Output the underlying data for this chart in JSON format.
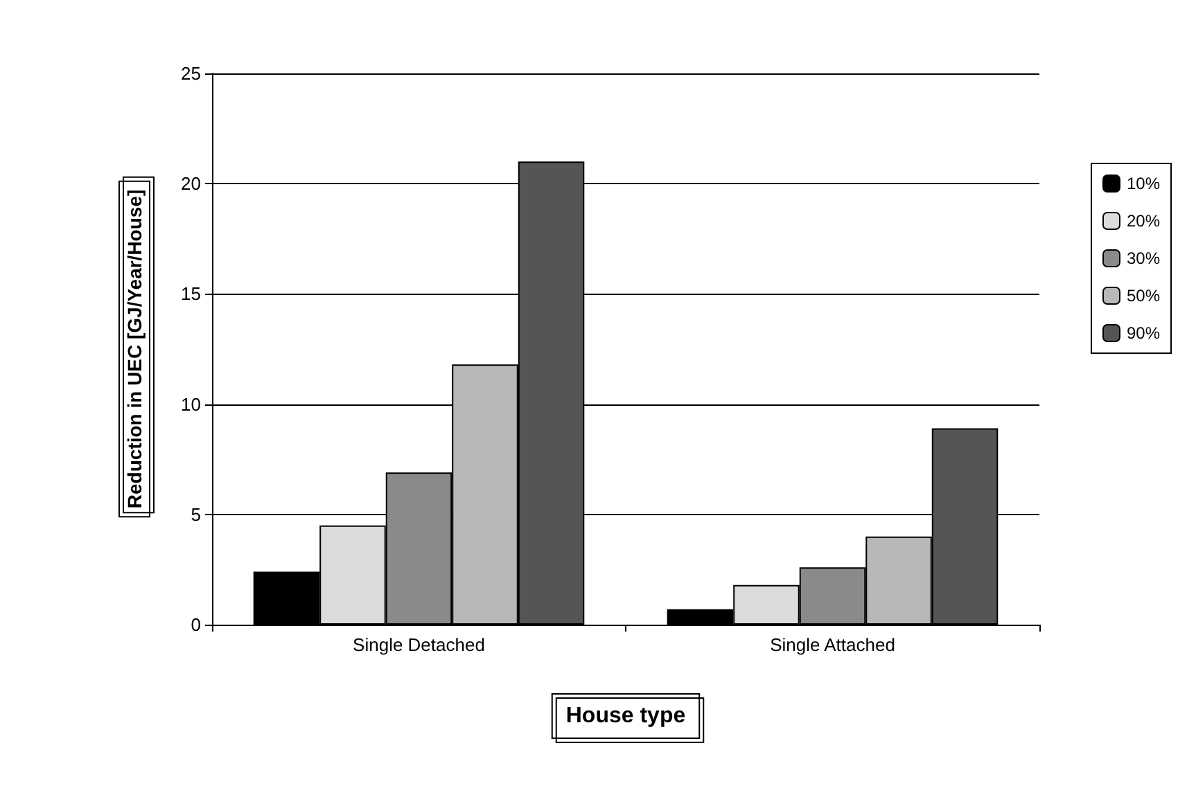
{
  "chart_data": {
    "type": "bar",
    "xlabel": "House type",
    "ylabel": "Reduction in UEC [GJ/Year/House]",
    "categories": [
      "Single Detached",
      "Single Attached"
    ],
    "series": [
      {
        "name": "10%",
        "color": "#000000",
        "values": [
          2.4,
          0.7
        ]
      },
      {
        "name": "20%",
        "color": "#dcdcdc",
        "values": [
          4.5,
          1.8
        ]
      },
      {
        "name": "30%",
        "color": "#8a8a8a",
        "values": [
          6.9,
          2.6
        ]
      },
      {
        "name": "50%",
        "color": "#b8b8b8",
        "values": [
          11.8,
          4.0
        ]
      },
      {
        "name": "90%",
        "color": "#555555",
        "values": [
          21.0,
          8.9
        ]
      }
    ],
    "ylim": [
      0,
      25
    ],
    "yticks": [
      0,
      5,
      10,
      15,
      20,
      25
    ],
    "grid": "y",
    "legend": "right"
  }
}
